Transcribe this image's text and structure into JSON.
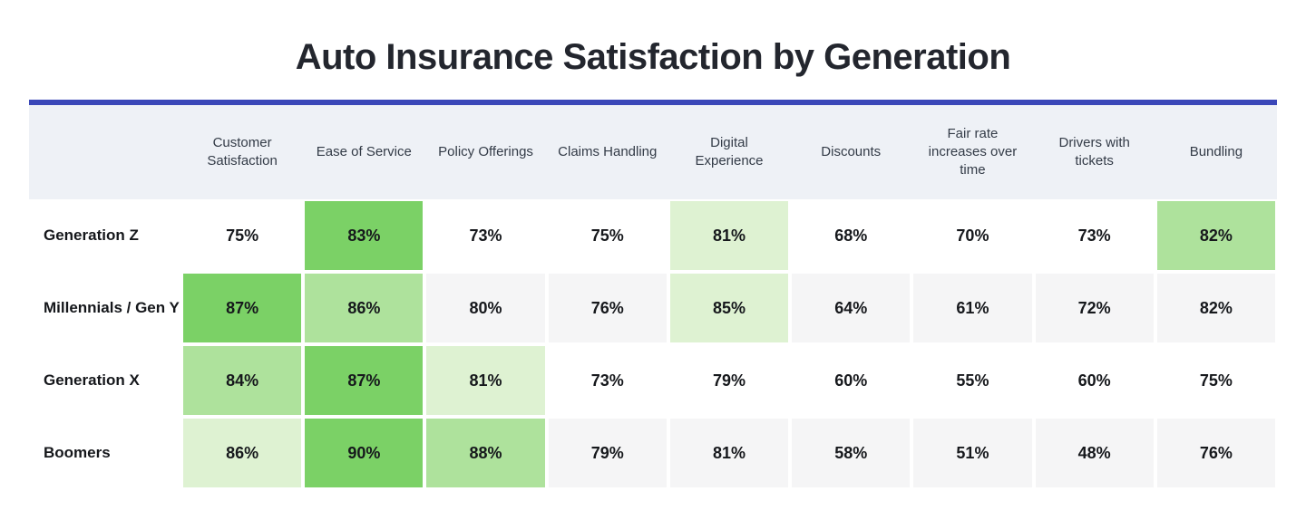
{
  "title": "Auto Insurance Satisfaction by Generation",
  "theme": {
    "accent_line_color": "#3a47b8",
    "header_background": "#eef1f6",
    "stripe_background": "#f5f5f6",
    "heat_rank_colors": {
      "rank1_darkest": "#7bd166",
      "rank2_medium": "#aee29c",
      "rank3_lightest": "#def2d2"
    }
  },
  "chart_data": {
    "type": "heatmap",
    "title": "Auto Insurance Satisfaction by Generation",
    "value_format": "percent",
    "legend_position": "none",
    "highlight_rule": "top 3 values in each row shaded green, darkest = highest",
    "columns": [
      "Customer Satisfaction",
      "Ease of Service",
      "Policy Offerings",
      "Claims Handling",
      "Digital Experience",
      "Discounts",
      "Fair rate increases over time",
      "Drivers with tickets",
      "Bundling"
    ],
    "rows": [
      {
        "label": "Generation Z",
        "values": [
          75,
          83,
          73,
          75,
          81,
          68,
          70,
          73,
          82
        ],
        "display": [
          "75%",
          "83%",
          "73%",
          "75%",
          "81%",
          "68%",
          "70%",
          "73%",
          "82%"
        ],
        "ranks": [
          0,
          1,
          0,
          0,
          3,
          0,
          0,
          0,
          2
        ]
      },
      {
        "label": "Millennials / Gen Y",
        "values": [
          87,
          86,
          80,
          76,
          85,
          64,
          61,
          72,
          82
        ],
        "display": [
          "87%",
          "86%",
          "80%",
          "76%",
          "85%",
          "64%",
          "61%",
          "72%",
          "82%"
        ],
        "ranks": [
          1,
          2,
          0,
          0,
          3,
          0,
          0,
          0,
          0
        ]
      },
      {
        "label": "Generation X",
        "values": [
          84,
          87,
          81,
          73,
          79,
          60,
          55,
          60,
          75
        ],
        "display": [
          "84%",
          "87%",
          "81%",
          "73%",
          "79%",
          "60%",
          "55%",
          "60%",
          "75%"
        ],
        "ranks": [
          2,
          1,
          3,
          0,
          0,
          0,
          0,
          0,
          0
        ]
      },
      {
        "label": "Boomers",
        "values": [
          86,
          90,
          88,
          79,
          81,
          58,
          51,
          48,
          76
        ],
        "display": [
          "86%",
          "90%",
          "88%",
          "79%",
          "81%",
          "58%",
          "51%",
          "48%",
          "76%"
        ],
        "ranks": [
          3,
          1,
          2,
          0,
          0,
          0,
          0,
          0,
          0
        ]
      }
    ]
  }
}
